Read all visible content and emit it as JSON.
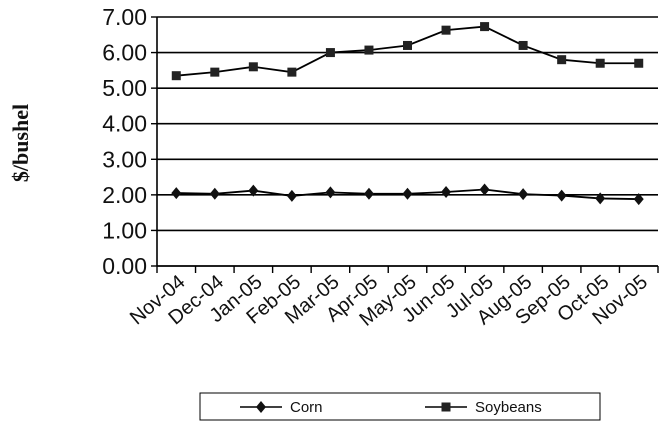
{
  "chart_data": {
    "type": "line",
    "title": "",
    "xlabel": "",
    "ylabel": "$/bushel",
    "categories": [
      "Nov-04",
      "Dec-04",
      "Jan-05",
      "Feb-05",
      "Mar-05",
      "Apr-05",
      "May-05",
      "Jun-05",
      "Jul-05",
      "Aug-05",
      "Sep-05",
      "Oct-05",
      "Nov-05"
    ],
    "ylim": [
      0,
      7
    ],
    "yticks": [
      "0.00",
      "1.00",
      "2.00",
      "3.00",
      "4.00",
      "5.00",
      "6.00",
      "7.00"
    ],
    "grid": "horizontal",
    "legend_position": "bottom",
    "series": [
      {
        "name": "Corn",
        "marker": "diamond",
        "color": "#000000",
        "values": [
          2.05,
          2.03,
          2.12,
          1.97,
          2.07,
          2.03,
          2.03,
          2.08,
          2.15,
          2.02,
          1.98,
          1.9,
          1.88
        ]
      },
      {
        "name": "Soybeans",
        "marker": "square",
        "color": "#000000",
        "values": [
          5.35,
          5.45,
          5.6,
          5.45,
          6.0,
          6.07,
          6.2,
          6.63,
          6.73,
          6.2,
          5.8,
          5.7,
          5.7
        ]
      }
    ]
  }
}
